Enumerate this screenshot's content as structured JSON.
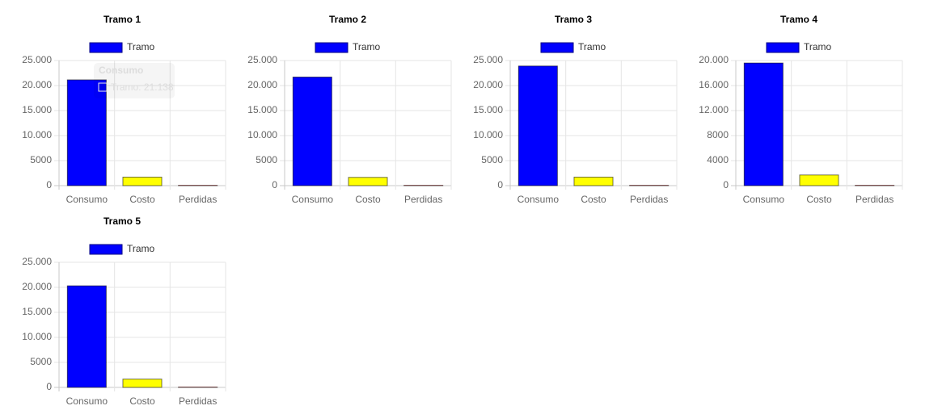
{
  "chart_data": [
    {
      "type": "bar",
      "title": "Tramo 1",
      "categories": [
        "Consumo",
        "Costo",
        "Perdidas"
      ],
      "series": [
        {
          "name": "Tramo",
          "color": "#0000ff",
          "colors": [
            "#0000ff",
            "#ffff00",
            "#ff0000"
          ],
          "values": [
            21138,
            1700,
            60
          ]
        }
      ],
      "ylim": [
        0,
        25000
      ],
      "yticks": [
        0,
        5000,
        {
          "value": 10000,
          "label": "10.000"
        },
        {
          "value": 15000,
          "label": "15.000"
        },
        {
          "value": 20000,
          "label": "20.000"
        },
        {
          "value": 25000,
          "label": "25.000"
        }
      ],
      "grid": true,
      "legend": "top",
      "tooltip": {
        "title": "Consumo",
        "label": "Tramo: 21.138"
      }
    },
    {
      "type": "bar",
      "title": "Tramo 2",
      "categories": [
        "Consumo",
        "Costo",
        "Perdidas"
      ],
      "series": [
        {
          "name": "Tramo",
          "color": "#0000ff",
          "colors": [
            "#0000ff",
            "#ffff00",
            "#ff0000"
          ],
          "values": [
            21700,
            1650,
            60
          ]
        }
      ],
      "ylim": [
        0,
        25000
      ],
      "yticks": [
        0,
        5000,
        {
          "value": 10000,
          "label": "10.000"
        },
        {
          "value": 15000,
          "label": "15.000"
        },
        {
          "value": 20000,
          "label": "20.000"
        },
        {
          "value": 25000,
          "label": "25.000"
        }
      ],
      "grid": true,
      "legend": "top"
    },
    {
      "type": "bar",
      "title": "Tramo 3",
      "categories": [
        "Consumo",
        "Costo",
        "Perdidas"
      ],
      "series": [
        {
          "name": "Tramo",
          "color": "#0000ff",
          "colors": [
            "#0000ff",
            "#ffff00",
            "#ff0000"
          ],
          "values": [
            23900,
            1700,
            60
          ]
        }
      ],
      "ylim": [
        0,
        25000
      ],
      "yticks": [
        0,
        5000,
        {
          "value": 10000,
          "label": "10.000"
        },
        {
          "value": 15000,
          "label": "15.000"
        },
        {
          "value": 20000,
          "label": "20.000"
        },
        {
          "value": 25000,
          "label": "25.000"
        }
      ],
      "grid": true,
      "legend": "top"
    },
    {
      "type": "bar",
      "title": "Tramo 4",
      "categories": [
        "Consumo",
        "Costo",
        "Perdidas"
      ],
      "series": [
        {
          "name": "Tramo",
          "color": "#0000ff",
          "colors": [
            "#0000ff",
            "#ffff00",
            "#ff0000"
          ],
          "values": [
            19600,
            1700,
            50
          ]
        }
      ],
      "ylim": [
        0,
        20000
      ],
      "yticks": [
        0,
        4000,
        8000,
        {
          "value": 12000,
          "label": "12.000"
        },
        {
          "value": 16000,
          "label": "16.000"
        },
        {
          "value": 20000,
          "label": "20.000"
        }
      ],
      "grid": true,
      "legend": "top"
    },
    {
      "type": "bar",
      "title": "Tramo 5",
      "categories": [
        "Consumo",
        "Costo",
        "Perdidas"
      ],
      "series": [
        {
          "name": "Tramo",
          "color": "#0000ff",
          "colors": [
            "#0000ff",
            "#ffff00",
            "#ff0000"
          ],
          "values": [
            20300,
            1650,
            60
          ]
        }
      ],
      "ylim": [
        0,
        25000
      ],
      "yticks": [
        0,
        5000,
        {
          "value": 10000,
          "label": "10.000"
        },
        {
          "value": 15000,
          "label": "15.000"
        },
        {
          "value": 20000,
          "label": "20.000"
        },
        {
          "value": 25000,
          "label": "25.000"
        }
      ],
      "grid": true,
      "legend": "top"
    }
  ]
}
